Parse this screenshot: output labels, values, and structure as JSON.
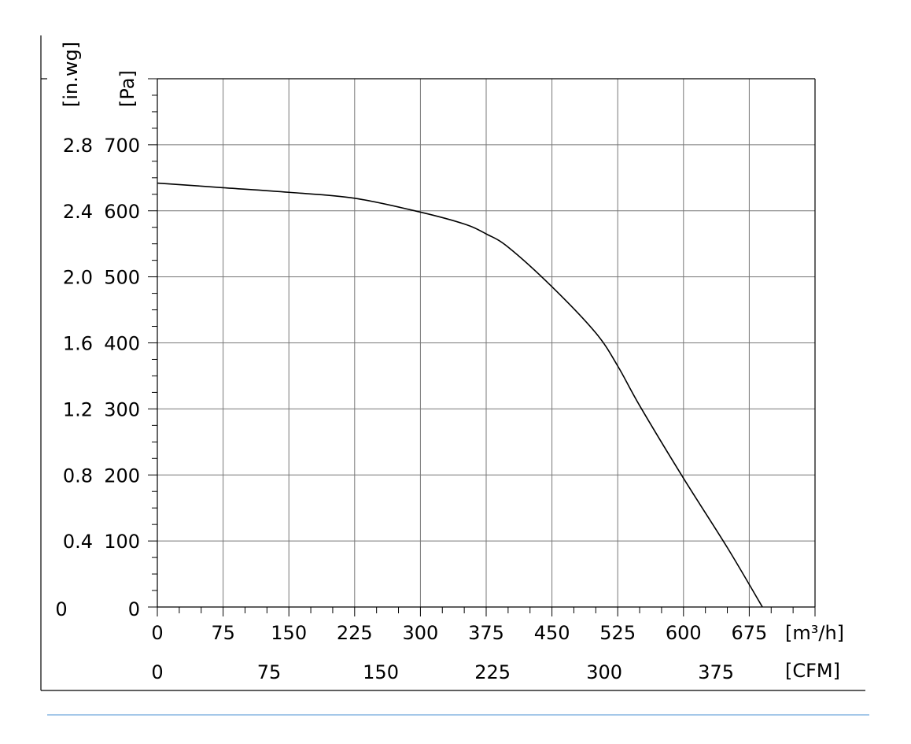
{
  "chart_data": {
    "type": "line",
    "x_unit_primary": "[m³/h]",
    "x_unit_secondary": "[CFM]",
    "y_unit_primary": "[Pa]",
    "y_unit_secondary": "[in.wg]",
    "x_ticks_primary": [
      "0",
      "75",
      "150",
      "225",
      "300",
      "375",
      "450",
      "525",
      "600",
      "675"
    ],
    "x_ticks_secondary": [
      "0",
      "75",
      "150",
      "225",
      "300",
      "375"
    ],
    "y_ticks_primary": [
      "0",
      "100",
      "200",
      "300",
      "400",
      "500",
      "600",
      "700"
    ],
    "y_ticks_secondary": [
      "0",
      "0.4",
      "0.8",
      "1.2",
      "1.6",
      "2.0",
      "2.4",
      "2.8"
    ],
    "xlim": [
      0,
      750
    ],
    "ylim": [
      0,
      800
    ],
    "grid": true,
    "series": [
      {
        "x": [
          0,
          75,
          150,
          225,
          300,
          350,
          375,
          400,
          450,
          500,
          525,
          550,
          600,
          650,
          690
        ],
        "y": [
          642,
          635,
          628,
          619,
          598,
          580,
          565,
          545,
          485,
          415,
          365,
          305,
          195,
          90,
          0
        ]
      }
    ]
  },
  "colors": {
    "divider": "#6fa8dc",
    "grid": "#777777",
    "axis": "#000000"
  }
}
